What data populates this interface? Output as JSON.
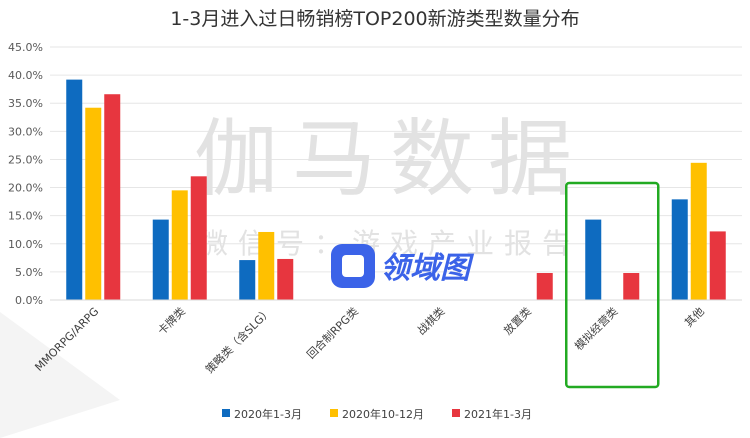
{
  "chart_data": {
    "type": "bar",
    "title": "1-3月进入过日畅销榜TOP200新游类型数量分布",
    "categories": [
      "MMORPG/ARPG",
      "卡牌类",
      "策略类（含SLG）",
      "回合制RPG类",
      "战棋类",
      "放置类",
      "模拟经营类",
      "其他"
    ],
    "series": [
      {
        "name": "2020年1-3月",
        "color": "#0e6bc0",
        "values": [
          39.2,
          14.3,
          7.1,
          0,
          0,
          0,
          14.3,
          17.9
        ]
      },
      {
        "name": "2020年10-12月",
        "color": "#ffc000",
        "values": [
          34.2,
          19.5,
          12.1,
          0,
          0,
          0,
          0,
          24.4
        ]
      },
      {
        "name": "2021年1-3月",
        "color": "#e7363f",
        "values": [
          36.6,
          22.0,
          7.3,
          0,
          0,
          4.8,
          4.8,
          12.2
        ]
      }
    ],
    "y_ticks": [
      "0.0%",
      "5.0%",
      "10.0%",
      "15.0%",
      "20.0%",
      "25.0%",
      "30.0%",
      "35.0%",
      "40.0%",
      "45.0%"
    ],
    "ylim": [
      0,
      45
    ],
    "grid": true,
    "legend_position": "bottom",
    "highlight_category": "模拟经营类",
    "highlight_color": "#22aa22"
  },
  "watermark": {
    "main": "伽马数据",
    "sub": "微信号：游戏产业报告",
    "logo": "领域图"
  }
}
